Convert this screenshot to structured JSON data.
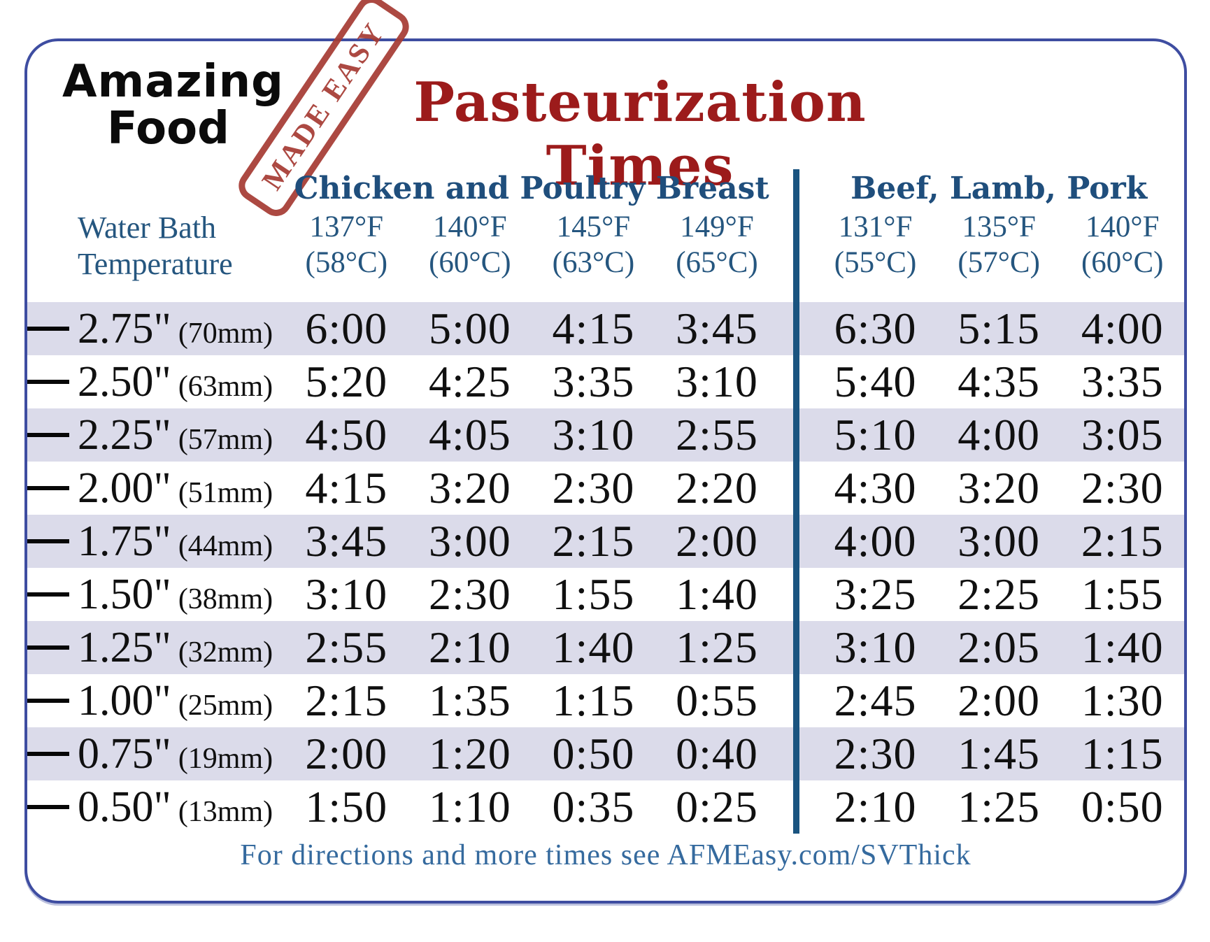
{
  "logo": {
    "name_line1": "Amazing",
    "name_line2": "Food",
    "stamp_text": "MADE EASY"
  },
  "title": "Pasteurization Times",
  "footer": "For directions and more times see AFMEasy.com/SVThick",
  "colors": {
    "card_border": "#3e4da1",
    "title_red": "#9c1b1b",
    "stamp_red": "#a63c34",
    "header_blue": "#1f4e7c",
    "temp_blue": "#25567f",
    "footer_blue": "#356a9e",
    "row_stripe": "#dbdbea",
    "section_divider": "#1a5480",
    "text_black": "#101010"
  },
  "chart_data": {
    "type": "table",
    "title": "Pasteurization Times",
    "row_header": {
      "line1": "Water Bath",
      "line2": "Temperature"
    },
    "column_groups": [
      {
        "label": "Chicken and Poultry Breast",
        "columns": [
          {
            "f": "137°F",
            "c": "(58°C)"
          },
          {
            "f": "140°F",
            "c": "(60°C)"
          },
          {
            "f": "145°F",
            "c": "(63°C)"
          },
          {
            "f": "149°F",
            "c": "(65°C)"
          }
        ]
      },
      {
        "label": "Beef, Lamb, Pork",
        "columns": [
          {
            "f": "131°F",
            "c": "(55°C)"
          },
          {
            "f": "135°F",
            "c": "(57°C)"
          },
          {
            "f": "140°F",
            "c": "(60°C)"
          }
        ]
      }
    ],
    "rows": [
      {
        "thickness": "2.75\"",
        "mm": "(70mm)",
        "chicken": [
          "6:00",
          "5:00",
          "4:15",
          "3:45"
        ],
        "beef": [
          "6:30",
          "5:15",
          "4:00"
        ]
      },
      {
        "thickness": "2.50\"",
        "mm": "(63mm)",
        "chicken": [
          "5:20",
          "4:25",
          "3:35",
          "3:10"
        ],
        "beef": [
          "5:40",
          "4:35",
          "3:35"
        ]
      },
      {
        "thickness": "2.25\"",
        "mm": "(57mm)",
        "chicken": [
          "4:50",
          "4:05",
          "3:10",
          "2:55"
        ],
        "beef": [
          "5:10",
          "4:00",
          "3:05"
        ]
      },
      {
        "thickness": "2.00\"",
        "mm": "(51mm)",
        "chicken": [
          "4:15",
          "3:20",
          "2:30",
          "2:20"
        ],
        "beef": [
          "4:30",
          "3:20",
          "2:30"
        ]
      },
      {
        "thickness": "1.75\"",
        "mm": "(44mm)",
        "chicken": [
          "3:45",
          "3:00",
          "2:15",
          "2:00"
        ],
        "beef": [
          "4:00",
          "3:00",
          "2:15"
        ]
      },
      {
        "thickness": "1.50\"",
        "mm": "(38mm)",
        "chicken": [
          "3:10",
          "2:30",
          "1:55",
          "1:40"
        ],
        "beef": [
          "3:25",
          "2:25",
          "1:55"
        ]
      },
      {
        "thickness": "1.25\"",
        "mm": "(32mm)",
        "chicken": [
          "2:55",
          "2:10",
          "1:40",
          "1:25"
        ],
        "beef": [
          "3:10",
          "2:05",
          "1:40"
        ]
      },
      {
        "thickness": "1.00\"",
        "mm": "(25mm)",
        "chicken": [
          "2:15",
          "1:35",
          "1:15",
          "0:55"
        ],
        "beef": [
          "2:45",
          "2:00",
          "1:30"
        ]
      },
      {
        "thickness": "0.75\"",
        "mm": "(19mm)",
        "chicken": [
          "2:00",
          "1:20",
          "0:50",
          "0:40"
        ],
        "beef": [
          "2:30",
          "1:45",
          "1:15"
        ]
      },
      {
        "thickness": "0.50\"",
        "mm": "(13mm)",
        "chicken": [
          "1:50",
          "1:10",
          "0:35",
          "0:25"
        ],
        "beef": [
          "2:10",
          "1:25",
          "0:50"
        ]
      }
    ]
  }
}
